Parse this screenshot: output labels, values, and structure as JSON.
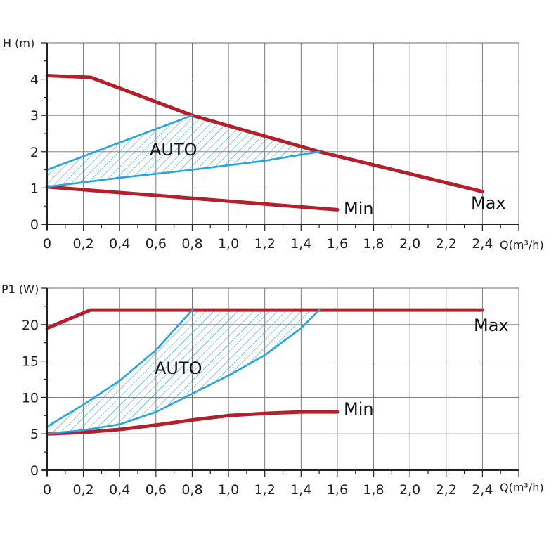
{
  "charts": [
    {
      "id": "head",
      "ylabel": "H (m)",
      "xlabel": "Q(m³/h)",
      "x_ticks": [
        "0",
        "0,2",
        "0,4",
        "0,6",
        "0,8",
        "1,0",
        "1,2",
        "1,4",
        "1,6",
        "1,8",
        "2,0",
        "2,2",
        "2,4"
      ],
      "y_ticks": [
        "0",
        "1",
        "2",
        "3",
        "4"
      ],
      "curve_labels": {
        "max": "Max",
        "min": "Min",
        "auto": "AUTO"
      }
    },
    {
      "id": "power",
      "ylabel": "P1 (W)",
      "xlabel": "Q(m³/h)",
      "x_ticks": [
        "0",
        "0,2",
        "0,4",
        "0,6",
        "0,8",
        "1,0",
        "1,2",
        "1,4",
        "1,6",
        "1,8",
        "2,0",
        "2,2",
        "2,4"
      ],
      "y_ticks": [
        "0",
        "5",
        "10",
        "15",
        "20"
      ],
      "curve_labels": {
        "max": "Max",
        "min": "Min",
        "auto": "AUTO"
      }
    }
  ],
  "chart_data": [
    {
      "type": "line",
      "xlabel": "Q(m³/h)",
      "ylabel": "H (m)",
      "xlim": [
        0,
        2.6
      ],
      "ylim": [
        0,
        5
      ],
      "grid": true,
      "series": [
        {
          "name": "Max",
          "color": "#b3202c",
          "x": [
            0,
            0.24,
            0.8,
            1.5,
            2.4
          ],
          "y": [
            4.1,
            4.05,
            3.0,
            2.0,
            0.9
          ]
        },
        {
          "name": "Min",
          "color": "#b3202c",
          "x": [
            0,
            1.6
          ],
          "y": [
            1.03,
            0.4
          ]
        },
        {
          "name": "AUTO",
          "color": "#29a3dc",
          "x": [
            0,
            0.4,
            0.8
          ],
          "y": [
            1.5,
            2.25,
            3.0
          ]
        },
        {
          "name": "AUTO",
          "color": "#29a3dc",
          "x": [
            0,
            0.4,
            0.8,
            1.2,
            1.5
          ],
          "y": [
            1.03,
            1.28,
            1.5,
            1.75,
            2.0
          ]
        }
      ],
      "annotations": [
        "AUTO",
        "Min",
        "Max"
      ]
    },
    {
      "type": "line",
      "xlabel": "Q(m³/h)",
      "ylabel": "P1 (W)",
      "xlim": [
        0,
        2.6
      ],
      "ylim": [
        0,
        25
      ],
      "grid": true,
      "series": [
        {
          "name": "Max",
          "color": "#b3202c",
          "x": [
            0,
            0.24,
            2.4
          ],
          "y": [
            19.5,
            22,
            22
          ]
        },
        {
          "name": "Min",
          "color": "#b3202c",
          "x": [
            0,
            0.2,
            0.4,
            0.6,
            0.8,
            1.0,
            1.2,
            1.4,
            1.6
          ],
          "y": [
            5.0,
            5.2,
            5.6,
            6.2,
            6.9,
            7.5,
            7.8,
            8.0,
            8.0
          ]
        },
        {
          "name": "AUTO",
          "color": "#29a3dc",
          "x": [
            0,
            0.2,
            0.4,
            0.6,
            0.8
          ],
          "y": [
            6.0,
            9.0,
            12.3,
            16.5,
            22
          ]
        },
        {
          "name": "AUTO",
          "color": "#29a3dc",
          "x": [
            0,
            0.2,
            0.4,
            0.6,
            0.8,
            1.0,
            1.2,
            1.4,
            1.5
          ],
          "y": [
            5.0,
            5.5,
            6.3,
            8.0,
            10.5,
            13.0,
            15.8,
            19.5,
            22
          ]
        }
      ],
      "annotations": [
        "AUTO",
        "Min",
        "Max"
      ]
    }
  ]
}
